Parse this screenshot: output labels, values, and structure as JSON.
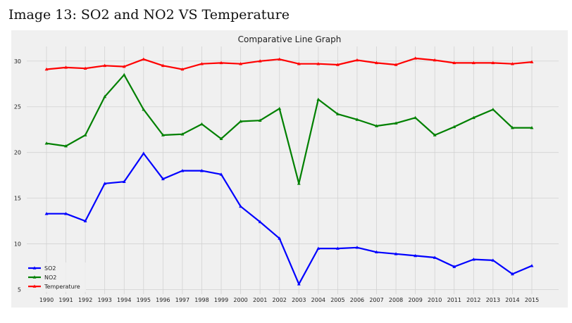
{
  "page": {
    "heading": "Image 13: SO2 and NO2 VS Temperature"
  },
  "chart_data": {
    "type": "line",
    "title": "Comparative Line Graph",
    "xlabel": "",
    "ylabel": "",
    "x": [
      1990,
      1991,
      1992,
      1993,
      1994,
      1995,
      1996,
      1997,
      1998,
      1999,
      2000,
      2001,
      2002,
      2003,
      2004,
      2005,
      2006,
      2007,
      2008,
      2009,
      2010,
      2011,
      2012,
      2013,
      2014,
      2015
    ],
    "yticks": [
      5,
      10,
      15,
      20,
      25,
      30
    ],
    "ylim": [
      4.5,
      31.6
    ],
    "grid": true,
    "legend_position": "lower-left",
    "series": [
      {
        "name": "SO2",
        "color": "#0000ff",
        "values": [
          13.3,
          13.3,
          12.5,
          16.6,
          16.8,
          19.9,
          17.1,
          18.0,
          18.0,
          17.6,
          14.1,
          12.4,
          10.6,
          5.6,
          9.5,
          9.5,
          9.6,
          9.1,
          8.9,
          8.7,
          8.5,
          7.5,
          8.3,
          8.2,
          6.7,
          7.6
        ]
      },
      {
        "name": "NO2",
        "color": "#008000",
        "values": [
          21.0,
          20.7,
          21.9,
          26.1,
          28.5,
          24.7,
          21.9,
          22.0,
          23.1,
          21.5,
          23.4,
          23.5,
          24.8,
          16.6,
          25.8,
          24.2,
          23.6,
          22.9,
          23.2,
          23.8,
          21.9,
          22.8,
          23.8,
          24.7,
          22.7,
          22.7
        ]
      },
      {
        "name": "Temperature",
        "color": "#ff0000",
        "values": [
          29.1,
          29.3,
          29.2,
          29.5,
          29.4,
          30.2,
          29.5,
          29.1,
          29.7,
          29.8,
          29.7,
          30.0,
          30.2,
          29.7,
          29.7,
          29.6,
          30.1,
          29.8,
          29.6,
          30.3,
          30.1,
          29.8,
          29.8,
          29.8,
          29.7,
          29.9
        ]
      }
    ]
  }
}
